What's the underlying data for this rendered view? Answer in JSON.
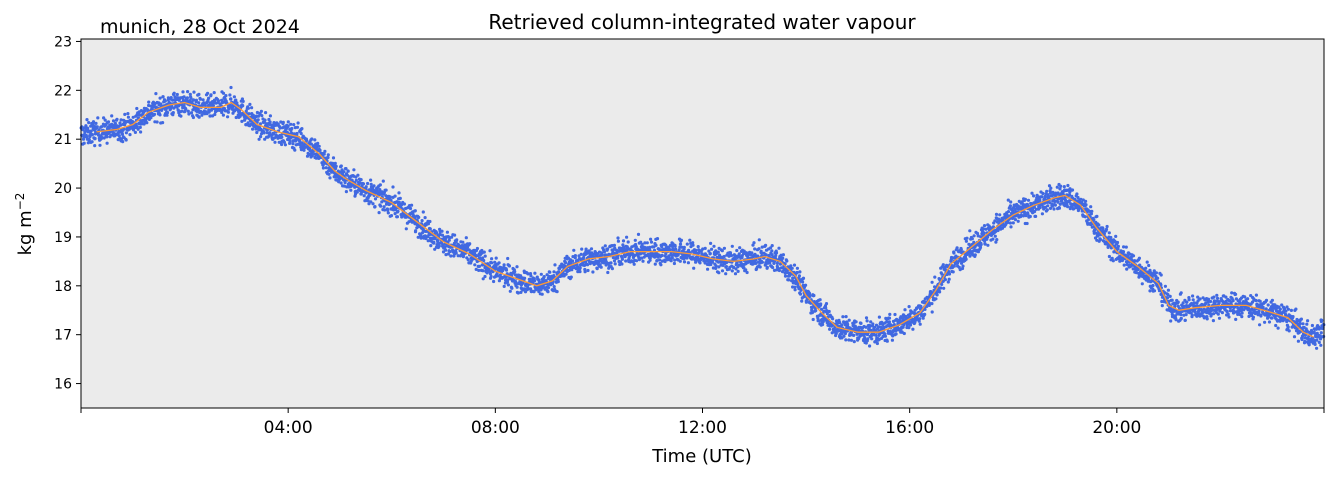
{
  "chart_data": {
    "type": "line",
    "title": "Retrieved column-integrated water vapour",
    "subtitle": "munich, 28 Oct 2024",
    "xlabel": "Time (UTC)",
    "ylabel": "kg m",
    "ylabel_exponent": "−2",
    "xlim": [
      0,
      24
    ],
    "ylim": [
      15.5,
      23.05
    ],
    "yticks": [
      16,
      17,
      18,
      19,
      20,
      21,
      22,
      23
    ],
    "xticks": [
      {
        "hour": 0,
        "label": ""
      },
      {
        "hour": 4,
        "label": "04:00"
      },
      {
        "hour": 8,
        "label": "08:00"
      },
      {
        "hour": 12,
        "label": "12:00"
      },
      {
        "hour": 16,
        "label": "16:00"
      },
      {
        "hour": 20,
        "label": "20:00"
      },
      {
        "hour": 24,
        "label": ""
      }
    ],
    "grid": false,
    "colors": {
      "plot_background": "#ebebeb",
      "scatter": "#4169e1",
      "smoothed": "#ff9933"
    },
    "series": [
      {
        "kind": "scatter",
        "noise_band": 0.17,
        "x": [
          0.0,
          0.3,
          0.7,
          1.0,
          1.3,
          1.7,
          2.0,
          2.3,
          2.7,
          2.9,
          3.1,
          3.4,
          3.8,
          4.2,
          4.6,
          4.9,
          5.1,
          5.5,
          6.0,
          6.5,
          7.0,
          7.5,
          8.0,
          8.4,
          8.8,
          9.1,
          9.4,
          9.8,
          10.2,
          10.6,
          11.0,
          11.4,
          11.8,
          12.2,
          12.6,
          13.0,
          13.2,
          13.5,
          13.8,
          14.0,
          14.3,
          14.6,
          15.0,
          15.4,
          15.8,
          16.2,
          16.5,
          16.8,
          17.2,
          17.6,
          18.0,
          18.4,
          18.8,
          19.0,
          19.3,
          19.6,
          20.0,
          20.4,
          20.8,
          21.0,
          21.2,
          21.5,
          22.0,
          22.5,
          23.0,
          23.3,
          23.6,
          23.8,
          24.0
        ],
        "y": [
          21.1,
          21.15,
          21.2,
          21.3,
          21.55,
          21.7,
          21.75,
          21.65,
          21.65,
          21.75,
          21.6,
          21.3,
          21.15,
          21.05,
          20.7,
          20.35,
          20.2,
          19.95,
          19.7,
          19.3,
          18.9,
          18.65,
          18.3,
          18.15,
          18.0,
          18.1,
          18.4,
          18.55,
          18.6,
          18.7,
          18.7,
          18.7,
          18.65,
          18.55,
          18.5,
          18.55,
          18.6,
          18.5,
          18.2,
          17.8,
          17.45,
          17.15,
          17.05,
          17.05,
          17.2,
          17.45,
          17.9,
          18.45,
          18.8,
          19.15,
          19.45,
          19.65,
          19.8,
          19.85,
          19.65,
          19.2,
          18.7,
          18.4,
          18.05,
          17.6,
          17.5,
          17.55,
          17.6,
          17.6,
          17.45,
          17.35,
          17.05,
          16.95,
          17.1
        ]
      },
      {
        "kind": "line",
        "x": [
          0.3,
          0.7,
          1.0,
          1.3,
          1.7,
          2.0,
          2.3,
          2.7,
          2.9,
          3.1,
          3.4,
          3.8,
          4.2,
          4.6,
          4.9,
          5.1,
          5.5,
          6.0,
          6.5,
          7.0,
          7.5,
          8.0,
          8.4,
          8.8,
          9.1,
          9.4,
          9.8,
          10.2,
          10.6,
          11.0,
          11.4,
          11.8,
          12.2,
          12.6,
          13.0,
          13.2,
          13.5,
          13.8,
          14.0,
          14.3,
          14.6,
          15.0,
          15.4,
          15.8,
          16.2,
          16.5,
          16.8,
          17.2,
          17.6,
          18.0,
          18.4,
          18.8,
          19.0,
          19.3,
          19.6,
          20.0,
          20.4,
          20.8,
          21.0,
          21.2,
          21.5,
          22.0,
          22.5,
          23.0,
          23.3,
          23.6,
          23.8
        ],
        "y": [
          21.15,
          21.2,
          21.3,
          21.55,
          21.7,
          21.75,
          21.65,
          21.65,
          21.75,
          21.6,
          21.3,
          21.15,
          21.05,
          20.7,
          20.35,
          20.2,
          19.95,
          19.7,
          19.3,
          18.9,
          18.65,
          18.3,
          18.15,
          18.0,
          18.1,
          18.4,
          18.55,
          18.6,
          18.7,
          18.7,
          18.7,
          18.65,
          18.55,
          18.5,
          18.55,
          18.6,
          18.5,
          18.2,
          17.8,
          17.45,
          17.15,
          17.05,
          17.05,
          17.2,
          17.45,
          17.9,
          18.45,
          18.8,
          19.15,
          19.45,
          19.65,
          19.8,
          19.85,
          19.65,
          19.2,
          18.7,
          18.4,
          18.05,
          17.6,
          17.5,
          17.55,
          17.6,
          17.6,
          17.45,
          17.35,
          17.05,
          16.95
        ]
      }
    ]
  }
}
